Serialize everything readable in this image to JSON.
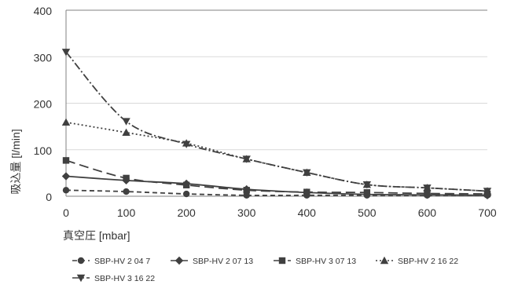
{
  "chart_data": {
    "type": "line",
    "xlabel": "真空圧 [mbar]",
    "ylabel": "吸込量 [l/min]",
    "xlim": [
      0,
      700
    ],
    "ylim": [
      0,
      400
    ],
    "xticks": [
      0,
      100,
      200,
      300,
      400,
      500,
      600,
      700
    ],
    "yticks": [
      0,
      100,
      200,
      300,
      400
    ],
    "grid": "horizontal",
    "legend_position": "bottom",
    "x": [
      0,
      100,
      200,
      300,
      400,
      500,
      600,
      700
    ],
    "series": [
      {
        "name": "SBP-HV 2 04 7",
        "marker": "circle",
        "dash": "6,4",
        "values": [
          13,
          10,
          5,
          2,
          2,
          2,
          2,
          2
        ]
      },
      {
        "name": "SBP-HV 2 07 13",
        "marker": "diamond",
        "dash": "",
        "values": [
          43,
          34,
          27,
          15,
          8,
          4,
          3,
          2
        ]
      },
      {
        "name": "SBP-HV 3 07 13",
        "marker": "square",
        "dash": "12,6",
        "values": [
          77,
          39,
          24,
          13,
          9,
          8,
          6,
          5
        ]
      },
      {
        "name": "SBP-HV 2 16 22",
        "marker": "triangle-up",
        "dash": "2,3",
        "values": [
          159,
          137,
          114,
          80,
          51,
          25,
          18,
          11
        ]
      },
      {
        "name": "SBP-HV 3 16 22",
        "marker": "triangle-down",
        "dash": "10,3,2,3",
        "values": [
          310,
          161,
          112,
          80,
          51,
          25,
          18,
          11
        ]
      }
    ]
  },
  "colors": {
    "series": "#404040",
    "grid": "#d9d9d9",
    "axis": "#808080",
    "text": "#333333"
  }
}
